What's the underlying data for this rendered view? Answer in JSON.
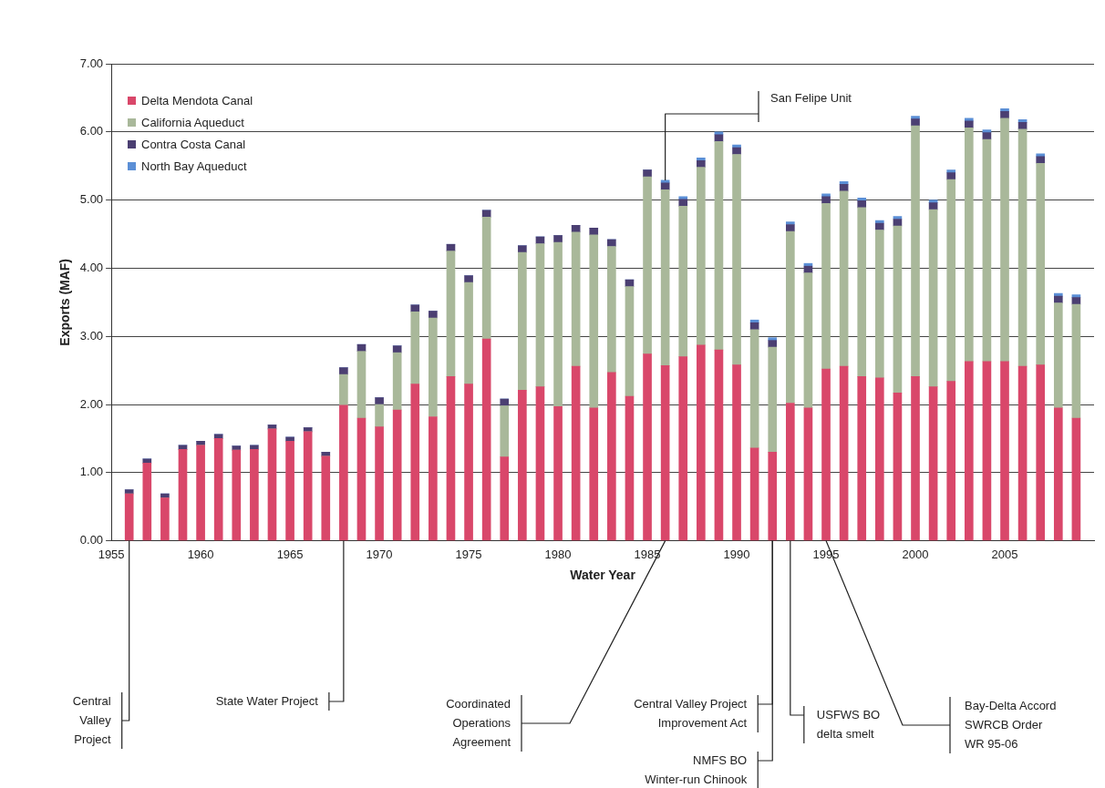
{
  "chart_data": {
    "type": "bar",
    "stacked": true,
    "xlabel": "Water Year",
    "ylabel": "Exports (MAF)",
    "x": [
      1956,
      1957,
      1958,
      1959,
      1960,
      1961,
      1962,
      1963,
      1964,
      1965,
      1966,
      1967,
      1968,
      1969,
      1970,
      1971,
      1972,
      1973,
      1974,
      1975,
      1976,
      1977,
      1978,
      1979,
      1980,
      1981,
      1982,
      1983,
      1984,
      1985,
      1986,
      1987,
      1988,
      1989,
      1990,
      1991,
      1992,
      1993,
      1994,
      1995,
      1996,
      1997,
      1998,
      1999,
      2000,
      2001,
      2002,
      2003,
      2004,
      2005,
      2006,
      2007,
      2008,
      2009
    ],
    "series": [
      {
        "name": "Delta Mendota Canal",
        "color": "#d9476a",
        "values": [
          0.69,
          1.14,
          0.63,
          1.34,
          1.4,
          1.5,
          1.33,
          1.34,
          1.64,
          1.46,
          1.6,
          1.24,
          1.99,
          1.8,
          1.67,
          1.92,
          2.3,
          1.82,
          2.41,
          2.3,
          2.96,
          1.23,
          2.21,
          2.26,
          1.97,
          2.56,
          1.95,
          2.47,
          2.12,
          2.74,
          2.57,
          2.7,
          2.87,
          2.8,
          2.58,
          1.36,
          1.3,
          2.02,
          1.95,
          2.52,
          2.56,
          2.41,
          2.39,
          2.17,
          2.41,
          2.26,
          2.34,
          2.63,
          2.63,
          2.63,
          2.56,
          2.58,
          1.95,
          1.8
        ]
      },
      {
        "name": "California Aqueduct",
        "color": "#a9b89a",
        "values": [
          0,
          0,
          0,
          0,
          0,
          0,
          0,
          0,
          0,
          0,
          0,
          0,
          0.45,
          0.98,
          0.33,
          0.84,
          1.06,
          1.45,
          1.84,
          1.49,
          1.79,
          0.75,
          2.02,
          2.1,
          2.41,
          1.97,
          2.54,
          1.85,
          1.61,
          2.6,
          2.58,
          2.21,
          2.61,
          3.06,
          3.09,
          1.74,
          1.54,
          2.52,
          1.98,
          2.43,
          2.57,
          2.48,
          2.17,
          2.45,
          3.68,
          2.6,
          2.96,
          3.43,
          3.26,
          3.57,
          3.48,
          2.96,
          1.54,
          1.67
        ]
      },
      {
        "name": "Contra Costa Canal",
        "color": "#4b3f72",
        "values": [
          0.06,
          0.06,
          0.06,
          0.06,
          0.06,
          0.06,
          0.06,
          0.06,
          0.06,
          0.06,
          0.06,
          0.06,
          0.1,
          0.1,
          0.1,
          0.1,
          0.1,
          0.1,
          0.1,
          0.1,
          0.1,
          0.1,
          0.1,
          0.1,
          0.1,
          0.1,
          0.1,
          0.1,
          0.1,
          0.1,
          0.1,
          0.1,
          0.1,
          0.1,
          0.1,
          0.1,
          0.1,
          0.1,
          0.1,
          0.1,
          0.1,
          0.1,
          0.1,
          0.1,
          0.1,
          0.1,
          0.1,
          0.1,
          0.1,
          0.1,
          0.1,
          0.1,
          0.1,
          0.1
        ]
      },
      {
        "name": "North Bay Aqueduct",
        "color": "#5b8fd6",
        "values": [
          0,
          0,
          0,
          0,
          0,
          0,
          0,
          0,
          0,
          0,
          0,
          0,
          0,
          0,
          0,
          0,
          0,
          0,
          0,
          0,
          0,
          0,
          0,
          0,
          0,
          0,
          0,
          0,
          0,
          0,
          0.04,
          0.04,
          0.04,
          0.04,
          0.04,
          0.04,
          0.04,
          0.04,
          0.04,
          0.04,
          0.04,
          0.04,
          0.04,
          0.04,
          0.04,
          0.04,
          0.04,
          0.04,
          0.04,
          0.04,
          0.04,
          0.04,
          0.04,
          0.04
        ]
      }
    ],
    "xlim": [
      1955,
      2010
    ],
    "xticks": [
      1955,
      1960,
      1965,
      1970,
      1975,
      1980,
      1985,
      1990,
      1995,
      2000,
      2005
    ],
    "ylim": [
      0,
      7
    ],
    "yticks": [
      {
        "value": 0,
        "label": "0.00"
      },
      {
        "value": 1,
        "label": "1.00"
      },
      {
        "value": 2,
        "label": "2.00"
      },
      {
        "value": 3,
        "label": "3.00"
      },
      {
        "value": 4,
        "label": "4.00"
      },
      {
        "value": 5,
        "label": "5.00"
      },
      {
        "value": 6,
        "label": "6.00"
      },
      {
        "value": 7,
        "label": "7.00"
      }
    ],
    "grid": "y",
    "legend": "top left",
    "annotations": [
      {
        "text": "Central\nValley\nProject",
        "x": 1956,
        "y": 0
      },
      {
        "text": "State Water Project",
        "x": 1968,
        "y": 0
      },
      {
        "text": "Coordinated\nOperations\nAgreement",
        "x": 1986,
        "y": 0
      },
      {
        "text": "Central Valley Project\nImprovement Act",
        "x": 1992,
        "y": 0
      },
      {
        "text": "NMFS BO\nWinter-run Chinook",
        "x": 1992,
        "y": 0
      },
      {
        "text": "USFWS BO\ndelta smelt",
        "x": 1993,
        "y": 0
      },
      {
        "text": "Bay-Delta Accord\nSWRCB Order\nWR 95-06",
        "x": 1995,
        "y": 0
      },
      {
        "text": "San Felipe Unit",
        "x": 1986,
        "y": 5.29
      }
    ]
  }
}
